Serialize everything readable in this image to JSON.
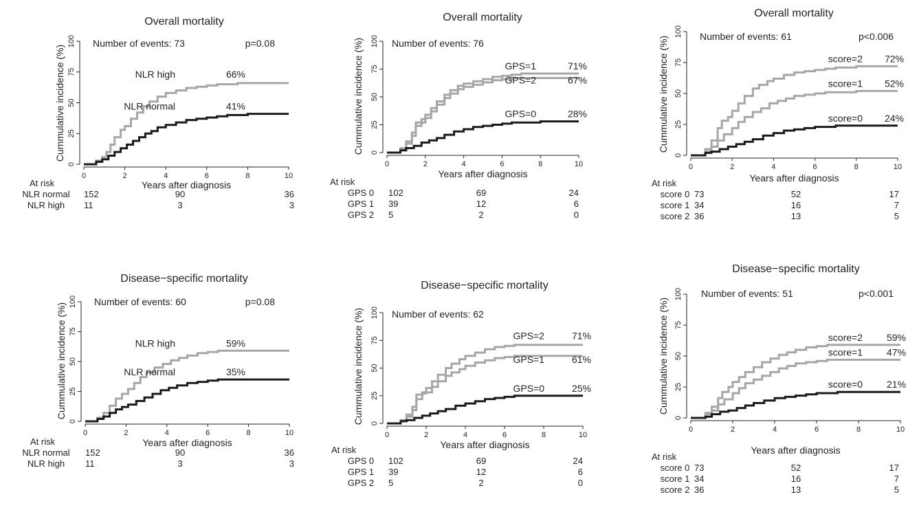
{
  "colors": {
    "high": "#a6a6a6",
    "normal": "#1a1a1a",
    "axis": "#222222",
    "text": "#222222"
  },
  "chart_data": [
    {
      "type": "line",
      "title": "Overall mortality",
      "xlabel": "Years after diagnosis",
      "ylabel": "Cummulative incidence (%)",
      "xlim": [
        0,
        10
      ],
      "ylim": [
        0,
        100
      ],
      "xticks": [
        0,
        2,
        4,
        6,
        8,
        10
      ],
      "yticks": [
        0,
        25,
        50,
        75,
        100
      ],
      "events_text": "Number of events: 73",
      "p_text": "p=0.08",
      "series": [
        {
          "name": "NLR high",
          "end_label": "66%",
          "color": "high",
          "x": [
            0.2,
            0.6,
            0.9,
            1.1,
            1.3,
            1.5,
            1.8,
            2.0,
            2.3,
            2.6,
            2.9,
            3.2,
            3.6,
            4.0,
            4.5,
            5.0,
            5.5,
            6.0,
            6.5,
            7.0,
            7.5,
            8.0,
            10.0
          ],
          "y": [
            0,
            3,
            6,
            10,
            16,
            22,
            28,
            31,
            37,
            42,
            47,
            51,
            55,
            58,
            60,
            62,
            63,
            64,
            65,
            65,
            66,
            66,
            66
          ]
        },
        {
          "name": "NLR normal",
          "end_label": "41%",
          "color": "normal",
          "x": [
            0.2,
            0.6,
            0.9,
            1.2,
            1.5,
            1.8,
            2.1,
            2.4,
            2.7,
            3.0,
            3.3,
            3.6,
            4.0,
            4.5,
            5.0,
            5.5,
            6.0,
            6.5,
            7.0,
            7.5,
            8.0,
            10.0
          ],
          "y": [
            0,
            2,
            4,
            7,
            10,
            13,
            16,
            19,
            22,
            25,
            27,
            30,
            32,
            34,
            36,
            37,
            38,
            39,
            40,
            40,
            41,
            41
          ]
        }
      ],
      "at_risk": {
        "heading": "At risk",
        "rows": [
          {
            "label": "NLR normal",
            "values": [
              "152",
              "90",
              "36"
            ]
          },
          {
            "label": "NLR high",
            "values": [
              "11",
              "3",
              "3"
            ]
          }
        ]
      }
    },
    {
      "type": "line",
      "title": "Overall mortality",
      "xlabel": "Years after diagnosis",
      "ylabel": "Cummulative incidence (%)",
      "xlim": [
        0,
        10
      ],
      "ylim": [
        0,
        100
      ],
      "xticks": [
        0,
        2,
        4,
        6,
        8,
        10
      ],
      "yticks": [
        0,
        25,
        50,
        75,
        100
      ],
      "events_text": "Number of events: 76",
      "p_text": "",
      "series": [
        {
          "name": "GPS=1",
          "end_label": "71%",
          "color": "high",
          "x": [
            0.3,
            0.7,
            1.0,
            1.3,
            1.5,
            1.8,
            2.0,
            2.3,
            2.6,
            3.0,
            3.3,
            3.7,
            4.0,
            4.5,
            5.0,
            5.5,
            6.0,
            6.5,
            7.0,
            8.0,
            10.0
          ],
          "y": [
            0,
            4,
            10,
            18,
            27,
            30,
            34,
            40,
            46,
            52,
            56,
            60,
            62,
            64,
            66,
            68,
            69,
            70,
            71,
            71,
            71
          ]
        },
        {
          "name": "GPS=2",
          "end_label": "67%",
          "color": "high",
          "x": [
            0.3,
            0.7,
            1.0,
            1.3,
            1.5,
            1.8,
            2.0,
            2.3,
            2.6,
            3.0,
            3.3,
            3.7,
            4.0,
            4.5,
            5.0,
            5.5,
            6.0,
            6.5,
            7.0,
            8.0,
            10.0
          ],
          "y": [
            0,
            3,
            8,
            15,
            24,
            27,
            31,
            37,
            43,
            49,
            53,
            57,
            59,
            61,
            63,
            65,
            66,
            67,
            67,
            67,
            67
          ]
        },
        {
          "name": "GPS=0",
          "end_label": "28%",
          "color": "normal",
          "x": [
            0.3,
            0.7,
            1.0,
            1.4,
            1.8,
            2.2,
            2.6,
            3.0,
            3.5,
            4.0,
            4.5,
            5.0,
            5.5,
            6.0,
            6.5,
            7.0,
            8.0,
            10.0
          ],
          "y": [
            0,
            2,
            4,
            6,
            9,
            11,
            13,
            16,
            19,
            21,
            23,
            24,
            25,
            26,
            27,
            27,
            28,
            28
          ]
        }
      ],
      "at_risk": {
        "heading": "At risk",
        "rows": [
          {
            "label": "GPS 0",
            "values": [
              "102",
              "69",
              "24"
            ]
          },
          {
            "label": "GPS 1",
            "values": [
              "39",
              "12",
              "6"
            ]
          },
          {
            "label": "GPS 2",
            "values": [
              "5",
              "2",
              "0"
            ]
          }
        ]
      }
    },
    {
      "type": "line",
      "title": "Overall mortality",
      "xlabel": "Years after diagnosis",
      "ylabel": "Cummulative incidence (%)",
      "xlim": [
        0,
        10
      ],
      "ylim": [
        0,
        100
      ],
      "xticks": [
        0,
        2,
        4,
        6,
        8,
        10
      ],
      "yticks": [
        0,
        25,
        50,
        75,
        100
      ],
      "events_text": "Number of events: 61",
      "p_text": "p<0.006",
      "series": [
        {
          "name": "score=2",
          "end_label": "72%",
          "color": "high",
          "x": [
            0.3,
            0.7,
            1.0,
            1.3,
            1.5,
            1.8,
            2.0,
            2.3,
            2.6,
            3.0,
            3.3,
            3.7,
            4.0,
            4.5,
            5.0,
            5.5,
            6.0,
            6.5,
            7.0,
            8.0,
            10.0
          ],
          "y": [
            0,
            5,
            12,
            22,
            28,
            31,
            36,
            42,
            48,
            54,
            57,
            60,
            62,
            65,
            67,
            68,
            69,
            70,
            71,
            72,
            72
          ]
        },
        {
          "name": "score=1",
          "end_label": "52%",
          "color": "high",
          "x": [
            0.3,
            0.7,
            1.0,
            1.3,
            1.6,
            2.0,
            2.3,
            2.6,
            3.0,
            3.4,
            3.8,
            4.2,
            4.6,
            5.0,
            5.5,
            6.0,
            6.5,
            7.0,
            8.0,
            10.0
          ],
          "y": [
            0,
            3,
            7,
            12,
            17,
            22,
            27,
            31,
            35,
            38,
            42,
            44,
            46,
            48,
            49,
            50,
            51,
            51,
            52,
            52
          ]
        },
        {
          "name": "score=0",
          "end_label": "24%",
          "color": "normal",
          "x": [
            0.3,
            0.7,
            1.0,
            1.4,
            1.8,
            2.2,
            2.6,
            3.0,
            3.5,
            4.0,
            4.5,
            5.0,
            5.5,
            6.0,
            6.5,
            7.0,
            8.0,
            10.0
          ],
          "y": [
            0,
            2,
            3,
            5,
            7,
            9,
            11,
            13,
            16,
            18,
            20,
            21,
            22,
            23,
            23,
            24,
            24,
            24
          ]
        }
      ],
      "at_risk": {
        "heading": "At risk",
        "rows": [
          {
            "label": "score 0",
            "values": [
              "73",
              "52",
              "17"
            ]
          },
          {
            "label": "score 1",
            "values": [
              "34",
              "16",
              "7"
            ]
          },
          {
            "label": "score 2",
            "values": [
              "36",
              "13",
              "5"
            ]
          }
        ]
      }
    },
    {
      "type": "line",
      "title": "Disease−specific mortality",
      "xlabel": "Years after diagnosis",
      "ylabel": "Cummulative incidence (%)",
      "xlim": [
        0,
        10
      ],
      "ylim": [
        0,
        100
      ],
      "xticks": [
        0,
        2,
        4,
        6,
        8,
        10
      ],
      "yticks": [
        0,
        25,
        50,
        75,
        100
      ],
      "events_text": "Number of events: 60",
      "p_text": "p=0.08",
      "series": [
        {
          "name": "NLR high",
          "end_label": "59%",
          "color": "high",
          "x": [
            0.2,
            0.6,
            0.9,
            1.2,
            1.5,
            1.8,
            2.1,
            2.4,
            2.7,
            3.0,
            3.4,
            3.8,
            4.2,
            4.6,
            5.0,
            5.5,
            6.0,
            6.5,
            7.0,
            10.0
          ],
          "y": [
            0,
            3,
            7,
            13,
            19,
            23,
            27,
            32,
            37,
            41,
            45,
            48,
            51,
            53,
            55,
            57,
            58,
            59,
            59,
            59
          ]
        },
        {
          "name": "NLR normal",
          "end_label": "35%",
          "color": "normal",
          "x": [
            0.2,
            0.6,
            0.9,
            1.2,
            1.5,
            1.8,
            2.1,
            2.5,
            2.9,
            3.3,
            3.7,
            4.1,
            4.5,
            5.0,
            5.5,
            6.0,
            6.5,
            7.0,
            10.0
          ],
          "y": [
            0,
            2,
            4,
            7,
            10,
            12,
            14,
            17,
            20,
            23,
            26,
            28,
            30,
            32,
            33,
            34,
            35,
            35,
            35
          ]
        }
      ],
      "at_risk": {
        "heading": "At risk",
        "rows": [
          {
            "label": "NLR normal",
            "values": [
              "152",
              "90",
              "36"
            ]
          },
          {
            "label": "NLR high",
            "values": [
              "11",
              "3",
              "3"
            ]
          }
        ]
      }
    },
    {
      "type": "line",
      "title": "Disease−specific mortality",
      "xlabel": "Years after diagnosis",
      "ylabel": "Cummulative incidence (%)",
      "xlim": [
        0,
        10
      ],
      "ylim": [
        0,
        100
      ],
      "xticks": [
        0,
        2,
        4,
        6,
        8,
        10
      ],
      "yticks": [
        0,
        25,
        50,
        75,
        100
      ],
      "events_text": "Number of events: 62",
      "p_text": "",
      "series": [
        {
          "name": "GPS=2",
          "end_label": "71%",
          "color": "high",
          "x": [
            0.3,
            0.7,
            1.0,
            1.3,
            1.5,
            1.8,
            2.0,
            2.3,
            2.6,
            3.0,
            3.3,
            3.7,
            4.0,
            4.5,
            5.0,
            5.5,
            6.0,
            6.5,
            7.0,
            10.0
          ],
          "y": [
            0,
            3,
            8,
            15,
            22,
            28,
            32,
            38,
            44,
            50,
            54,
            58,
            61,
            64,
            67,
            69,
            70,
            71,
            71,
            71
          ]
        },
        {
          "name": "GPS=1",
          "end_label": "61%",
          "color": "high",
          "x": [
            0.3,
            0.7,
            1.0,
            1.3,
            1.5,
            1.8,
            2.0,
            2.3,
            2.6,
            3.0,
            3.3,
            3.7,
            4.0,
            4.5,
            5.0,
            5.5,
            6.0,
            6.5,
            7.0,
            10.0
          ],
          "y": [
            0,
            2,
            6,
            12,
            26,
            27,
            28,
            33,
            38,
            43,
            46,
            49,
            52,
            55,
            57,
            59,
            60,
            61,
            61,
            61
          ]
        },
        {
          "name": "GPS=0",
          "end_label": "25%",
          "color": "normal",
          "x": [
            0.3,
            0.7,
            1.0,
            1.4,
            1.8,
            2.2,
            2.6,
            3.0,
            3.5,
            4.0,
            4.5,
            5.0,
            5.5,
            6.0,
            6.5,
            10.0
          ],
          "y": [
            0,
            2,
            3,
            5,
            7,
            9,
            11,
            13,
            16,
            18,
            20,
            22,
            23,
            24,
            25,
            25
          ]
        }
      ],
      "at_risk": {
        "heading": "At risk",
        "rows": [
          {
            "label": "GPS 0",
            "values": [
              "102",
              "69",
              "24"
            ]
          },
          {
            "label": "GPS 1",
            "values": [
              "39",
              "12",
              "6"
            ]
          },
          {
            "label": "GPS 2",
            "values": [
              "5",
              "2",
              "0"
            ]
          }
        ]
      }
    },
    {
      "type": "line",
      "title": "Disease−specific mortality",
      "xlabel": "Years after diagnosis",
      "ylabel": "Cummulative incidence (%)",
      "xlim": [
        0,
        10
      ],
      "ylim": [
        0,
        100
      ],
      "xticks": [
        0,
        2,
        4,
        6,
        8,
        10
      ],
      "yticks": [
        0,
        25,
        50,
        75,
        100
      ],
      "events_text": "Number of events: 51",
      "p_text": "p<0.001",
      "series": [
        {
          "name": "score=2",
          "end_label": "59%",
          "color": "high",
          "x": [
            0.3,
            0.7,
            1.0,
            1.3,
            1.5,
            1.8,
            2.0,
            2.3,
            2.6,
            3.0,
            3.4,
            3.8,
            4.2,
            4.6,
            5.0,
            5.5,
            6.0,
            6.5,
            7.0,
            10.0
          ],
          "y": [
            0,
            4,
            9,
            16,
            21,
            25,
            29,
            33,
            37,
            41,
            45,
            48,
            51,
            53,
            55,
            57,
            58,
            59,
            59,
            59
          ]
        },
        {
          "name": "score=1",
          "end_label": "47%",
          "color": "high",
          "x": [
            0.3,
            0.7,
            1.0,
            1.3,
            1.6,
            2.0,
            2.3,
            2.6,
            3.0,
            3.4,
            3.8,
            4.2,
            4.6,
            5.0,
            5.5,
            6.0,
            6.5,
            7.0,
            10.0
          ],
          "y": [
            0,
            3,
            6,
            11,
            15,
            20,
            24,
            28,
            31,
            34,
            37,
            40,
            42,
            44,
            45,
            46,
            47,
            47,
            47
          ]
        },
        {
          "name": "score=0",
          "end_label": "21%",
          "color": "normal",
          "x": [
            0.3,
            0.7,
            1.0,
            1.4,
            1.8,
            2.2,
            2.6,
            3.0,
            3.5,
            4.0,
            4.5,
            5.0,
            5.5,
            6.0,
            6.5,
            7.0,
            10.0
          ],
          "y": [
            0,
            1,
            3,
            5,
            6,
            8,
            10,
            12,
            14,
            16,
            17,
            18,
            19,
            20,
            20,
            21,
            21
          ]
        }
      ],
      "at_risk": {
        "heading": "At risk",
        "rows": [
          {
            "label": "score 0",
            "values": [
              "73",
              "52",
              "17"
            ]
          },
          {
            "label": "score 1",
            "values": [
              "34",
              "16",
              "7"
            ]
          },
          {
            "label": "score 2",
            "values": [
              "36",
              "13",
              "5"
            ]
          }
        ]
      }
    }
  ]
}
